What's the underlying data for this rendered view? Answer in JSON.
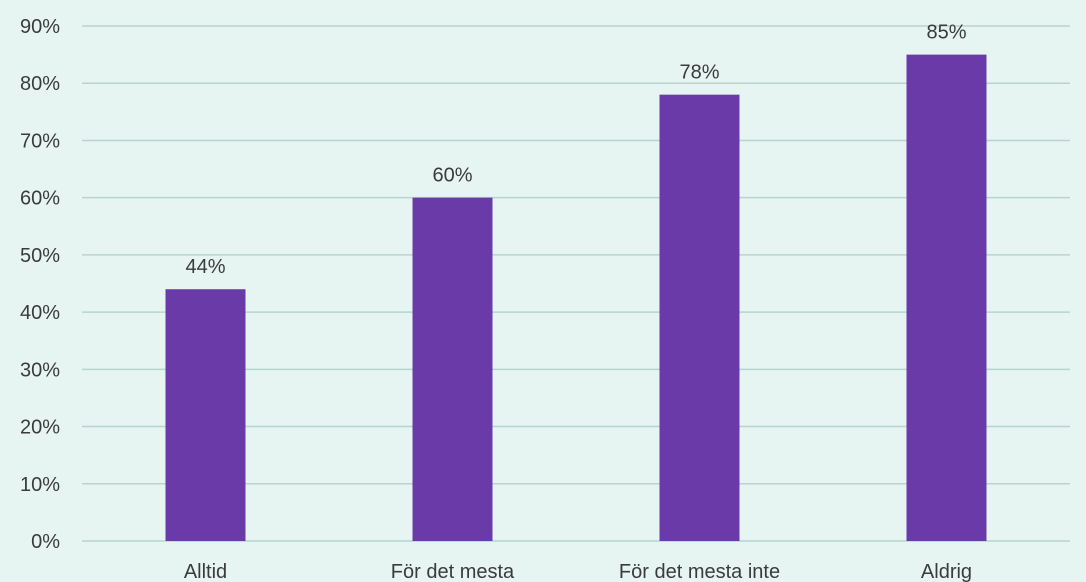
{
  "chart_data": {
    "type": "bar",
    "categories": [
      "Alltid",
      "För det mesta",
      "För det mesta inte",
      "Aldrig"
    ],
    "values": [
      44,
      60,
      78,
      85
    ],
    "data_labels": [
      "44%",
      "60%",
      "78%",
      "85%"
    ],
    "y_ticks": [
      0,
      10,
      20,
      30,
      40,
      50,
      60,
      70,
      80,
      90
    ],
    "y_tick_labels": [
      "0%",
      "10%",
      "20%",
      "30%",
      "40%",
      "50%",
      "60%",
      "70%",
      "80%",
      "90%"
    ],
    "ylim": [
      0,
      90
    ],
    "title": "",
    "xlabel": "",
    "ylabel": "",
    "grid": true,
    "legend": "none",
    "bar_color": "#6a3aa8",
    "background_color": "#e6f5f2",
    "grid_color": "#b8d4ce",
    "text_color": "#3b3b3b"
  }
}
